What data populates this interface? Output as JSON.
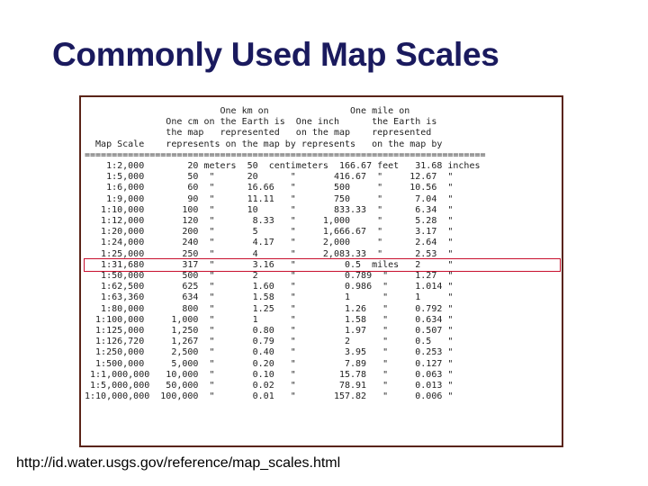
{
  "title": "Commonly Used Map Scales",
  "table_lines": [
    "                         One km on               One mile on",
    "               One cm on the Earth is  One inch      the Earth is",
    "               the map   represented   on the map    represented",
    "  Map Scale    represents on the map by represents   on the map by",
    "==========================================================================",
    "    1:2,000        20 meters  50  centimeters  166.67 feet   31.68 inches",
    "    1:5,000        50  \"      20      \"       416.67  \"     12.67  \"",
    "    1:6,000        60  \"      16.66   \"       500     \"     10.56  \"",
    "    1:9,000        90  \"      11.11   \"       750     \"      7.04  \"",
    "   1:10,000       100  \"      10      \"       833.33  \"      6.34  \"",
    "   1:12,000       120  \"       8.33   \"     1,000     \"      5.28  \"",
    "   1:20,000       200  \"       5      \"     1,666.67  \"      3.17  \"",
    "   1:24,000       240  \"       4.17   \"     2,000     \"      2.64  \"",
    "   1:25,000       250  \"       4      \"     2,083.33  \"      2.53  \"",
    "   1:31,680       317  \"       3.16   \"         0.5  miles   2     \"",
    "   1:50,000       500  \"       2      \"         0.789  \"     1.27  \"",
    "   1:62,500       625  \"       1.60   \"         0.986  \"     1.014 \"",
    "   1:63,360       634  \"       1.58   \"         1      \"     1     \"",
    "   1:80,000       800  \"       1.25   \"         1.26   \"     0.792 \"",
    "  1:100,000     1,000  \"       1      \"         1.58   \"     0.634 \"",
    "  1:125,000     1,250  \"       0.80   \"         1.97   \"     0.507 \"",
    "  1:126,720     1,267  \"       0.79   \"         2      \"     0.5   \"",
    "  1:250,000     2,500  \"       0.40   \"         3.95   \"     0.253 \"",
    "  1:500,000     5,000  \"       0.20   \"         7.89   \"     0.127 \"",
    " 1:1,000,000   10,000  \"       0.10   \"        15.78   \"     0.063 \"",
    " 1:5,000,000   50,000  \"       0.02   \"        78.91   \"     0.013 \"",
    "1:10,000,000  100,000  \"       0.01   \"       157.82   \"     0.006 \""
  ],
  "highlight_row": "1:24,000",
  "highlight_color": "#c8102e",
  "frame_color": "#5a2418",
  "title_color": "#1a1a5e",
  "source_url": "http://id.water.usgs.gov/reference/map_scales.html"
}
